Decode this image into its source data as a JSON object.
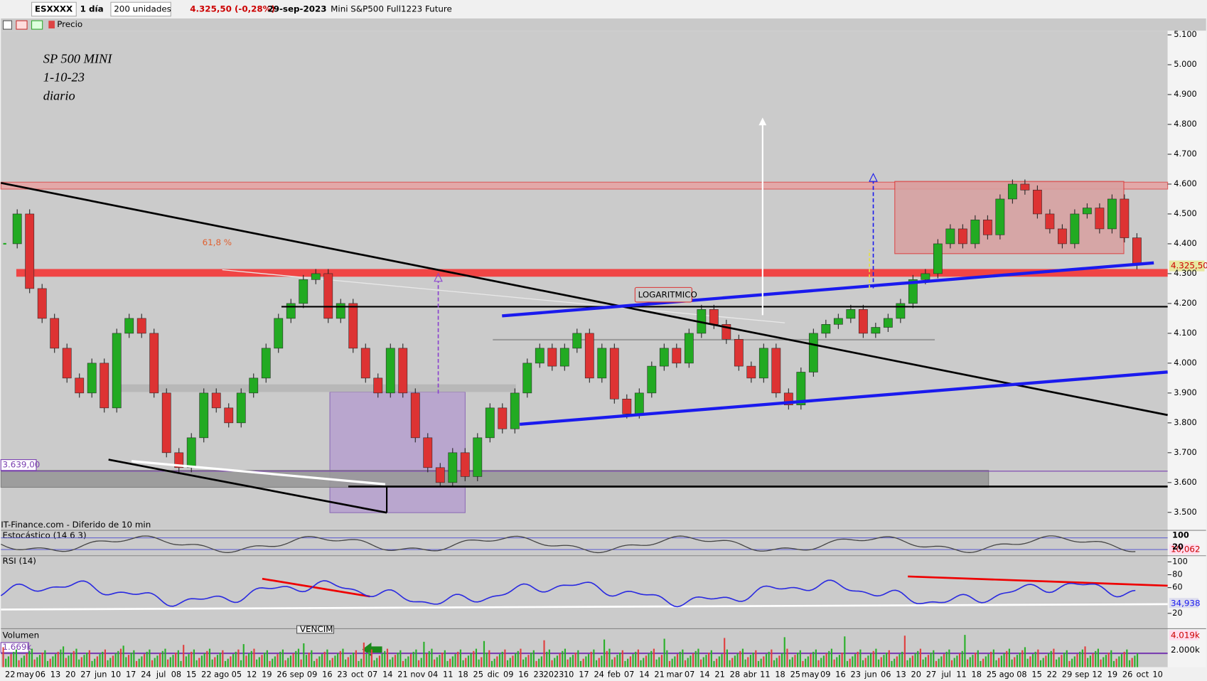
{
  "toolbar": {
    "symbol": "ESXXXX",
    "period": "1 día",
    "units": "200 unidades",
    "price": "4.325,50 (-0,28%)",
    "date": "29-sep-2023",
    "instrument": "Mini S&P500 Full1223 Future",
    "price_label": "Precio"
  },
  "annotations": {
    "title": "SP 500 MINI",
    "date": "1-10-23",
    "frame": "diario",
    "fib": "61,8 %",
    "scale": "LOGARITMICO",
    "level": "3.639,00",
    "last": "4.325,50",
    "source": "IT-Finance.com - Diferido de 10 min",
    "vencim": "VENCIM"
  },
  "price_axis": {
    "ylim": [
      3445,
      5155
    ],
    "ticks": [
      {
        "value": 5100,
        "label": "5.100"
      },
      {
        "value": 5000,
        "label": "5.000"
      },
      {
        "value": 4900,
        "label": "4.900"
      },
      {
        "value": 4800,
        "label": "4.800"
      },
      {
        "value": 4700,
        "label": "4.700"
      },
      {
        "value": 4600,
        "label": "4.600"
      },
      {
        "value": 4500,
        "label": "4.500"
      },
      {
        "value": 4400,
        "label": "4.400"
      },
      {
        "value": 4300,
        "label": "4.300"
      },
      {
        "value": 4200,
        "label": "4.200"
      },
      {
        "value": 4100,
        "label": "4.100"
      },
      {
        "value": 4000,
        "label": "4.000"
      },
      {
        "value": 3900,
        "label": "3.900"
      },
      {
        "value": 3800,
        "label": "3.800"
      },
      {
        "value": 3700,
        "label": "3.700"
      },
      {
        "value": 3600,
        "label": "3.600"
      },
      {
        "value": 3500,
        "label": "3.500"
      }
    ]
  },
  "price": {
    "closes": [
      4400,
      4500,
      4250,
      4150,
      4050,
      3950,
      3900,
      4000,
      3850,
      4100,
      4150,
      4100,
      3900,
      3700,
      3650,
      3750,
      3900,
      3850,
      3800,
      3900,
      3950,
      4050,
      4150,
      4200,
      4280,
      4300,
      4150,
      4200,
      4050,
      3950,
      3900,
      4050,
      3900,
      3750,
      3650,
      3600,
      3700,
      3620,
      3750,
      3850,
      3780,
      3900,
      4000,
      4050,
      3990,
      4050,
      4100,
      3950,
      4050,
      3880,
      3830,
      3900,
      3990,
      4050,
      4000,
      4100,
      4180,
      4130,
      4080,
      3990,
      3950,
      4050,
      3900,
      3860,
      3970,
      4100,
      4130,
      4150,
      4180,
      4100,
      4120,
      4150,
      4200,
      4280,
      4300,
      4400,
      4450,
      4400,
      4480,
      4430,
      4550,
      4600,
      4580,
      4500,
      4450,
      4400,
      4500,
      4520,
      4450,
      4550,
      4420,
      4330
    ]
  },
  "x_axis": {
    "labels": [
      "22",
      "may",
      "06",
      "13",
      "20",
      "27",
      "jun",
      "10",
      "17",
      "24",
      "jul",
      "08",
      "15",
      "22",
      "ago",
      "05",
      "12",
      "19",
      "26",
      "sep",
      "09",
      "16",
      "23",
      "oct",
      "07",
      "14",
      "21",
      "nov",
      "04",
      "11",
      "18",
      "25",
      "dic",
      "09",
      "16",
      "23",
      "2023",
      "10",
      "17",
      "24",
      "feb",
      "07",
      "14",
      "21",
      "mar",
      "07",
      "14",
      "21",
      "28",
      "abr",
      "11",
      "18",
      "25",
      "may",
      "09",
      "16",
      "23",
      "jun",
      "06",
      "13",
      "20",
      "27",
      "jul",
      "11",
      "18",
      "25",
      "ago",
      "08",
      "15",
      "22",
      "29",
      "sep",
      "12",
      "19",
      "26",
      "oct",
      "10"
    ]
  },
  "stochastic": {
    "name": "Estocástico (14 6 3)",
    "ticks": [
      100,
      20
    ],
    "value": "10,062"
  },
  "rsi": {
    "name": "RSI (14)",
    "ticks": [
      100,
      80,
      60,
      20
    ],
    "value": "34,938"
  },
  "volume": {
    "name": "Volumen",
    "left": "1.669k",
    "value": "4.019k",
    "tick": "2.000k"
  }
}
